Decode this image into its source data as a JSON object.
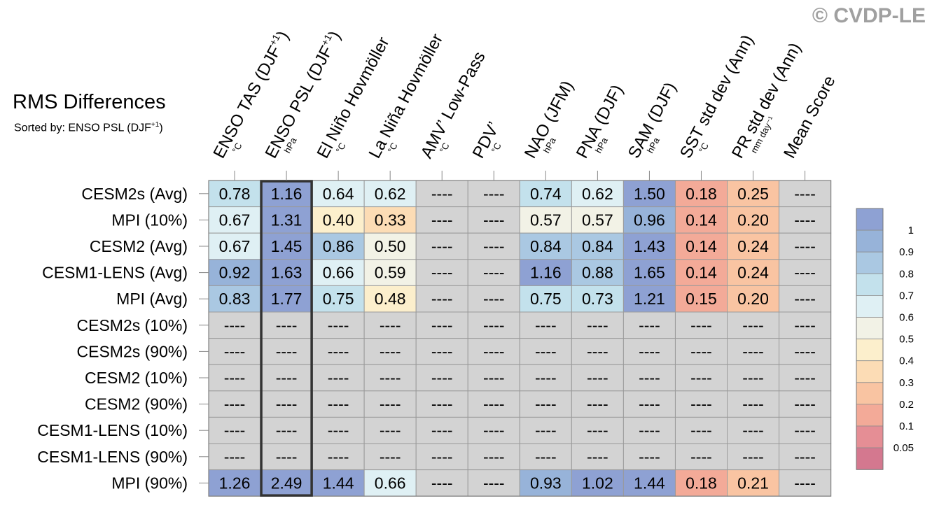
{
  "title": "RMS Differences",
  "subtitle": "Sorted by: ENSO PSL (DJF",
  "subtitle_sup": "+1",
  "subtitle_end": ")",
  "copyright": "© CVDP-LE",
  "chart_data": {
    "type": "heatmap",
    "title": "RMS Differences",
    "columns": [
      {
        "label": "ENSO TAS (DJF",
        "sup": "+1",
        "end": ")",
        "unit": "°C"
      },
      {
        "label": "ENSO PSL (DJF",
        "sup": "+1",
        "end": ")",
        "unit": "hPa"
      },
      {
        "label": "El Niño Hovmöller",
        "sup": "",
        "end": "",
        "unit": "°C"
      },
      {
        "label": "La Niña Hovmöller",
        "sup": "",
        "end": "",
        "unit": "°C"
      },
      {
        "label": "AMV’ Low-Pass",
        "sup": "",
        "end": "",
        "unit": "°C"
      },
      {
        "label": "PDV’",
        "sup": "",
        "end": "",
        "unit": "°C"
      },
      {
        "label": "NAO (JFM)",
        "sup": "",
        "end": "",
        "unit": "hPa"
      },
      {
        "label": "PNA (DJF)",
        "sup": "",
        "end": "",
        "unit": "hPa"
      },
      {
        "label": "SAM (DJF)",
        "sup": "",
        "end": "",
        "unit": "hPa"
      },
      {
        "label": "SST std dev (Ann)",
        "sup": "",
        "end": "",
        "unit": "°C"
      },
      {
        "label": "PR std dev (Ann)",
        "sup": "",
        "end": "",
        "unit": "mm day⁻¹"
      },
      {
        "label": "Mean Score",
        "sup": "",
        "end": "",
        "unit": ""
      }
    ],
    "rows": [
      {
        "label": "CESM2s (Avg)",
        "values": [
          "0.78",
          "1.16",
          "0.64",
          "0.62",
          "----",
          "----",
          "0.74",
          "0.62",
          "1.50",
          "0.18",
          "0.25",
          "----"
        ]
      },
      {
        "label": "MPI (10%)",
        "values": [
          "0.67",
          "1.31",
          "0.40",
          "0.33",
          "----",
          "----",
          "0.57",
          "0.57",
          "0.96",
          "0.14",
          "0.20",
          "----"
        ]
      },
      {
        "label": "CESM2 (Avg)",
        "values": [
          "0.67",
          "1.45",
          "0.86",
          "0.50",
          "----",
          "----",
          "0.84",
          "0.84",
          "1.43",
          "0.14",
          "0.24",
          "----"
        ]
      },
      {
        "label": "CESM1-LENS (Avg)",
        "values": [
          "0.92",
          "1.63",
          "0.66",
          "0.59",
          "----",
          "----",
          "1.16",
          "0.88",
          "1.65",
          "0.14",
          "0.24",
          "----"
        ]
      },
      {
        "label": "MPI (Avg)",
        "values": [
          "0.83",
          "1.77",
          "0.75",
          "0.48",
          "----",
          "----",
          "0.75",
          "0.73",
          "1.21",
          "0.15",
          "0.20",
          "----"
        ]
      },
      {
        "label": "CESM2s (10%)",
        "values": [
          "----",
          "----",
          "----",
          "----",
          "----",
          "----",
          "----",
          "----",
          "----",
          "----",
          "----",
          "----"
        ]
      },
      {
        "label": "CESM2s (90%)",
        "values": [
          "----",
          "----",
          "----",
          "----",
          "----",
          "----",
          "----",
          "----",
          "----",
          "----",
          "----",
          "----"
        ]
      },
      {
        "label": "CESM2 (10%)",
        "values": [
          "----",
          "----",
          "----",
          "----",
          "----",
          "----",
          "----",
          "----",
          "----",
          "----",
          "----",
          "----"
        ]
      },
      {
        "label": "CESM2 (90%)",
        "values": [
          "----",
          "----",
          "----",
          "----",
          "----",
          "----",
          "----",
          "----",
          "----",
          "----",
          "----",
          "----"
        ]
      },
      {
        "label": "CESM1-LENS (10%)",
        "values": [
          "----",
          "----",
          "----",
          "----",
          "----",
          "----",
          "----",
          "----",
          "----",
          "----",
          "----",
          "----"
        ]
      },
      {
        "label": "CESM1-LENS (90%)",
        "values": [
          "----",
          "----",
          "----",
          "----",
          "----",
          "----",
          "----",
          "----",
          "----",
          "----",
          "----",
          "----"
        ]
      },
      {
        "label": "MPI (90%)",
        "values": [
          "1.26",
          "2.49",
          "1.44",
          "0.66",
          "----",
          "----",
          "0.93",
          "1.02",
          "1.44",
          "0.18",
          "0.21",
          "----"
        ]
      }
    ],
    "sorted_column": 1,
    "missing_color": "#d3d3d3",
    "colorbar": {
      "levels": [
        "0.05",
        "0.1",
        "0.2",
        "0.3",
        "0.4",
        "0.5",
        "0.6",
        "0.7",
        "0.8",
        "0.9",
        "1"
      ],
      "colors": [
        "#d4788f",
        "#e58e95",
        "#f3aa98",
        "#f9c4a2",
        "#fcdcb5",
        "#fcefcc",
        "#f2f2e6",
        "#dff0f4",
        "#c3e1ec",
        "#aac8e2",
        "#97b3d9",
        "#8ea1d3"
      ]
    }
  }
}
